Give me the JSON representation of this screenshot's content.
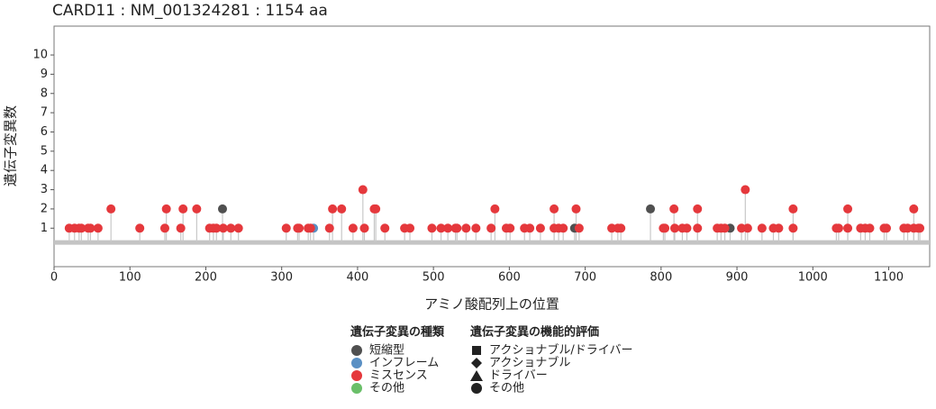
{
  "chart_data": {
    "type": "lollipop",
    "title": "CARD11 : NM_001324281 : 1154 aa",
    "x_label": "アミノ酸配列上の位置",
    "y_label": "遺伝子変異数",
    "xlim": [
      0,
      1154
    ],
    "ylim": [
      -1,
      11.5
    ],
    "xticks": [
      0,
      100,
      200,
      300,
      400,
      500,
      600,
      700,
      800,
      900,
      1000,
      1100
    ],
    "yticks": [
      1,
      2,
      3,
      4,
      5,
      6,
      7,
      8,
      9,
      10
    ],
    "legend_title": "遺伝子変異の種類",
    "series": [
      {
        "name": "短縮型",
        "color": "#505050",
        "x": [
          222,
          786,
          686,
          891
        ],
        "values": [
          2,
          2,
          1,
          1
        ]
      },
      {
        "name": "インフレーム",
        "color": "#5a90c4",
        "x": [
          342
        ],
        "values": [
          1
        ]
      },
      {
        "name": "ミスセンス",
        "color": "#e5383c",
        "x": [
          20,
          27,
          33,
          36,
          45,
          48,
          58,
          113,
          146,
          167,
          205,
          210,
          214,
          223,
          233,
          243,
          306,
          321,
          323,
          335,
          338,
          363,
          394,
          409,
          436,
          462,
          469,
          498,
          510,
          519,
          529,
          531,
          543,
          556,
          576,
          596,
          601,
          620,
          627,
          641,
          659,
          665,
          671,
          692,
          735,
          743,
          747,
          803,
          805,
          818,
          828,
          834,
          848,
          874,
          879,
          884,
          906,
          914,
          933,
          948,
          955,
          974,
          1031,
          1034,
          1046,
          1063,
          1069,
          1075,
          1094,
          1097,
          1120,
          1125,
          1133,
          1139,
          1141,
          75,
          148,
          170,
          188,
          367,
          379,
          422,
          424,
          581,
          659,
          688,
          817,
          848,
          974,
          1046,
          1133,
          407,
          911
        ],
        "values": [
          1,
          1,
          1,
          1,
          1,
          1,
          1,
          1,
          1,
          1,
          1,
          1,
          1,
          1,
          1,
          1,
          1,
          1,
          1,
          1,
          1,
          1,
          1,
          1,
          1,
          1,
          1,
          1,
          1,
          1,
          1,
          1,
          1,
          1,
          1,
          1,
          1,
          1,
          1,
          1,
          1,
          1,
          1,
          1,
          1,
          1,
          1,
          1,
          1,
          1,
          1,
          1,
          1,
          1,
          1,
          1,
          1,
          1,
          1,
          1,
          1,
          1,
          1,
          1,
          1,
          1,
          1,
          1,
          1,
          1,
          1,
          1,
          1,
          1,
          1,
          2,
          2,
          2,
          2,
          2,
          2,
          2,
          2,
          2,
          2,
          2,
          2,
          2,
          2,
          2,
          2,
          3,
          3
        ]
      },
      {
        "name": "その他",
        "color": "#6abf69",
        "x": [],
        "values": []
      }
    ],
    "legend2": {
      "title": "遺伝子変異の機能的評価",
      "items": [
        "アクショナブル/ドライバー",
        "アクショナブル",
        "ドライバー",
        "その他"
      ]
    }
  }
}
